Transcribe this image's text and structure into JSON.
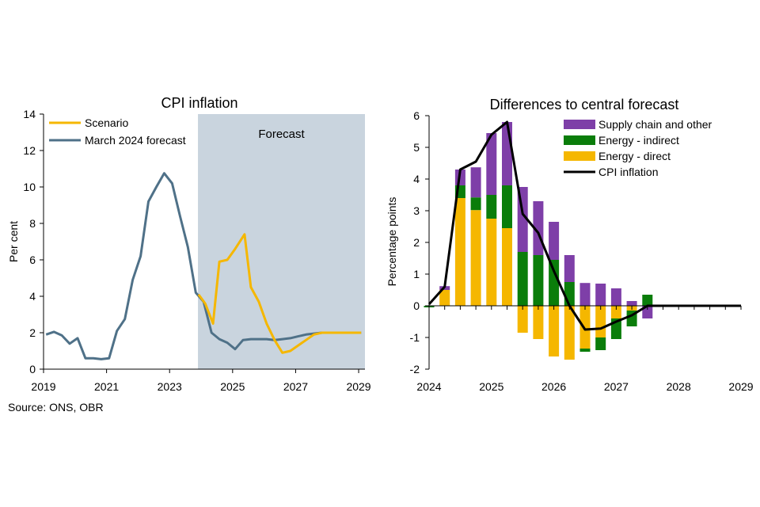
{
  "source": "Source: ONS, OBR",
  "chart_data": [
    {
      "type": "line",
      "title": "CPI inflation",
      "ylabel": "Per cent",
      "xlabel": "",
      "ylim": [
        0,
        14
      ],
      "xlim": [
        2019,
        2029.2
      ],
      "yticks": [
        0,
        2,
        4,
        6,
        8,
        10,
        12,
        14
      ],
      "xticks": [
        2019,
        2021,
        2023,
        2025,
        2027,
        2029
      ],
      "forecast_label": "Forecast",
      "forecast_start": 2023.9,
      "forecast_color": "#c9d4de",
      "legend_position": "top-left",
      "series": [
        {
          "name": "Scenario",
          "color": "#f5b700",
          "points": [
            [
              2023.92,
              4.1
            ],
            [
              2024.13,
              3.6
            ],
            [
              2024.38,
              2.5
            ],
            [
              2024.58,
              5.9
            ],
            [
              2024.83,
              6.0
            ],
            [
              2025.08,
              6.6
            ],
            [
              2025.38,
              7.4
            ],
            [
              2025.58,
              4.5
            ],
            [
              2025.83,
              3.7
            ],
            [
              2026.08,
              2.5
            ],
            [
              2026.33,
              1.6
            ],
            [
              2026.58,
              0.9
            ],
            [
              2026.83,
              1.0
            ],
            [
              2027.08,
              1.3
            ],
            [
              2027.33,
              1.6
            ],
            [
              2027.58,
              1.9
            ],
            [
              2027.83,
              2.0
            ],
            [
              2028.08,
              2.0
            ],
            [
              2028.33,
              2.0
            ],
            [
              2028.58,
              2.0
            ],
            [
              2028.83,
              2.0
            ],
            [
              2029.08,
              2.0
            ]
          ]
        },
        {
          "name": "March 2024 forecast",
          "color": "#4f7188",
          "points": [
            [
              2019.08,
              1.9
            ],
            [
              2019.33,
              2.05
            ],
            [
              2019.58,
              1.85
            ],
            [
              2019.83,
              1.4
            ],
            [
              2020.08,
              1.7
            ],
            [
              2020.33,
              0.6
            ],
            [
              2020.58,
              0.6
            ],
            [
              2020.83,
              0.55
            ],
            [
              2021.08,
              0.6
            ],
            [
              2021.33,
              2.1
            ],
            [
              2021.58,
              2.75
            ],
            [
              2021.83,
              4.9
            ],
            [
              2022.08,
              6.2
            ],
            [
              2022.33,
              9.2
            ],
            [
              2022.58,
              10.0
            ],
            [
              2022.83,
              10.75
            ],
            [
              2023.08,
              10.2
            ],
            [
              2023.33,
              8.4
            ],
            [
              2023.58,
              6.7
            ],
            [
              2023.83,
              4.2
            ],
            [
              2024.08,
              3.7
            ],
            [
              2024.33,
              2.0
            ],
            [
              2024.58,
              1.65
            ],
            [
              2024.83,
              1.45
            ],
            [
              2025.08,
              1.1
            ],
            [
              2025.33,
              1.6
            ],
            [
              2025.58,
              1.65
            ],
            [
              2025.83,
              1.65
            ],
            [
              2026.08,
              1.65
            ],
            [
              2026.33,
              1.6
            ],
            [
              2026.58,
              1.65
            ],
            [
              2026.83,
              1.7
            ],
            [
              2027.08,
              1.8
            ],
            [
              2027.33,
              1.9
            ],
            [
              2027.58,
              1.95
            ],
            [
              2027.83,
              2.0
            ],
            [
              2028.08,
              2.0
            ],
            [
              2028.33,
              2.0
            ],
            [
              2028.58,
              2.0
            ],
            [
              2028.83,
              2.0
            ],
            [
              2029.08,
              2.0
            ]
          ]
        }
      ]
    },
    {
      "type": "bar",
      "stacked": true,
      "title": "Differences to central forecast",
      "ylabel": "Percentage points",
      "xlabel": "",
      "ylim": [
        -2,
        6
      ],
      "xlim": [
        2024,
        2029
      ],
      "yticks": [
        -2,
        -1,
        0,
        1,
        2,
        3,
        4,
        5,
        6
      ],
      "xticks": [
        2024,
        2025,
        2026,
        2027,
        2028,
        2029
      ],
      "legend_position": "top-right",
      "x": [
        2024.0,
        2024.25,
        2024.5,
        2024.75,
        2025.0,
        2025.25,
        2025.5,
        2025.75,
        2026.0,
        2026.25,
        2026.5,
        2026.75,
        2027.0,
        2027.25,
        2027.5
      ],
      "series": [
        {
          "name": "Supply chain and other",
          "color": "#7e3fa8",
          "values": [
            0,
            0.12,
            0.5,
            0.95,
            1.95,
            2.0,
            2.05,
            1.7,
            1.2,
            0.85,
            0.72,
            0.7,
            0.55,
            0.15,
            -0.4
          ]
        },
        {
          "name": "Energy - indirect",
          "color": "#0a7d0a",
          "values": [
            -0.05,
            0.0,
            0.4,
            0.4,
            0.75,
            1.35,
            1.7,
            1.6,
            1.45,
            0.75,
            -0.1,
            -0.4,
            -0.65,
            -0.5,
            0.35
          ]
        },
        {
          "name": "Energy - direct",
          "color": "#f5b700",
          "values": [
            0,
            0.5,
            3.4,
            3.02,
            2.75,
            2.45,
            -0.85,
            -1.05,
            -1.6,
            -1.7,
            -1.35,
            -1.0,
            -0.4,
            -0.15,
            0
          ]
        }
      ],
      "line_series": {
        "name": "CPI inflation",
        "color": "#000000",
        "points": [
          [
            2024.0,
            0.05
          ],
          [
            2024.25,
            0.6
          ],
          [
            2024.5,
            4.3
          ],
          [
            2024.75,
            4.55
          ],
          [
            2025.0,
            5.4
          ],
          [
            2025.25,
            5.8
          ],
          [
            2025.5,
            2.9
          ],
          [
            2025.75,
            2.3
          ],
          [
            2026.0,
            1.1
          ],
          [
            2026.25,
            0.0
          ],
          [
            2026.5,
            -0.75
          ],
          [
            2026.75,
            -0.72
          ],
          [
            2027.0,
            -0.5
          ],
          [
            2027.25,
            -0.3
          ],
          [
            2027.5,
            0.0
          ],
          [
            2027.75,
            0.0
          ],
          [
            2028.0,
            0.0
          ],
          [
            2028.25,
            0.0
          ],
          [
            2028.5,
            0.0
          ],
          [
            2028.75,
            0.0
          ],
          [
            2029.0,
            0.0
          ]
        ]
      }
    }
  ]
}
